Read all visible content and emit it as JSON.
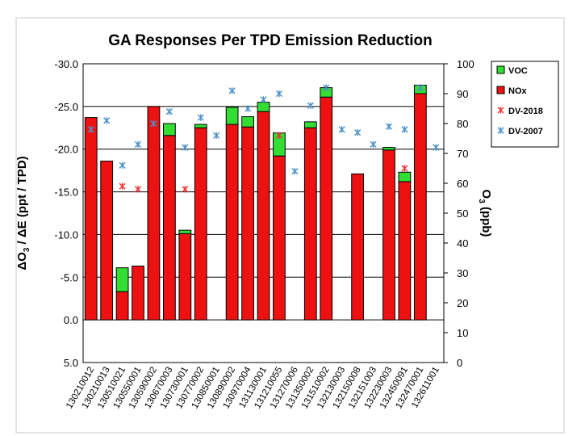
{
  "chart_data": {
    "type": "bar",
    "stacked": true,
    "title": "GA Responses Per TPD Emission Reduction",
    "ylabel_left": "ΔO3 / ΔE (ppt / TPD)",
    "ylabel_right": "O3 (ppb)",
    "ylim_left": [
      5.0,
      -30.0
    ],
    "left_ticks": [
      "-30.0",
      "-25.0",
      "-20.0",
      "-15.0",
      "-10.0",
      "-5.0",
      "0.0",
      "5.0"
    ],
    "ylim_right": [
      0,
      100
    ],
    "right_ticks": [
      "100",
      "90",
      "80",
      "70",
      "60",
      "50",
      "40",
      "30",
      "20",
      "10",
      "0"
    ],
    "grid": true,
    "legend_position": "top-right",
    "legend": [
      {
        "label": "VOC",
        "kind": "box",
        "color": "#33dd33"
      },
      {
        "label": "NOx",
        "kind": "box",
        "color": "#ee1111"
      },
      {
        "label": "DV-2018",
        "kind": "star",
        "color": "#ee3333"
      },
      {
        "label": "DV-2007",
        "kind": "star",
        "color": "#4a90c8"
      }
    ],
    "categories": [
      "130210012",
      "130210013",
      "130510021",
      "130550001",
      "130590002",
      "130670003",
      "130730001",
      "130770002",
      "130850001",
      "130890002",
      "130970004",
      "131130001",
      "131210055",
      "131270006",
      "131350002",
      "131510002",
      "132130003",
      "132150008",
      "132151003",
      "132230003",
      "132450091",
      "132470001",
      "132611001"
    ],
    "series": [
      {
        "name": "NOx",
        "color": "#ee1111",
        "values": [
          -23.7,
          -18.6,
          -3.3,
          -6.3,
          -25.0,
          -21.6,
          -10.1,
          -22.5,
          0,
          -22.9,
          -22.6,
          -24.4,
          -19.2,
          0,
          -22.5,
          -26.1,
          0,
          -17.1,
          0,
          -19.9,
          -16.2,
          -26.5,
          0
        ]
      },
      {
        "name": "VOC",
        "color": "#33dd33",
        "values": [
          0,
          0,
          -2.8,
          0,
          0,
          -1.4,
          -0.4,
          -0.4,
          0,
          -2.0,
          -1.2,
          -1.1,
          -2.7,
          0,
          -0.7,
          -1.1,
          0,
          0,
          0,
          -0.3,
          -1.1,
          -1.0,
          0
        ]
      },
      {
        "name": "DV-2018",
        "color": "#ee3333",
        "values": [
          null,
          null,
          59,
          58,
          null,
          null,
          58,
          null,
          null,
          null,
          null,
          null,
          76,
          null,
          null,
          null,
          null,
          null,
          null,
          null,
          65,
          null,
          null
        ]
      },
      {
        "name": "DV-2007",
        "color": "#4a90c8",
        "values": [
          78,
          81,
          66,
          73,
          80,
          84,
          72,
          82,
          76,
          91,
          85,
          88,
          90,
          64,
          86,
          92,
          78,
          77,
          73,
          79,
          78,
          92,
          72
        ]
      }
    ]
  }
}
